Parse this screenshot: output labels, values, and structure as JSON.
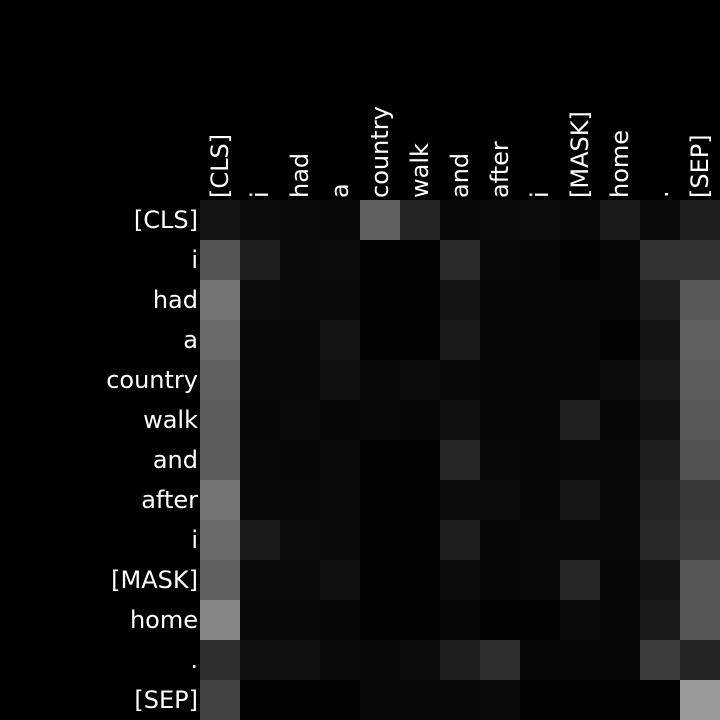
{
  "chart_data": {
    "type": "heatmap",
    "title": "",
    "xlabel": "",
    "ylabel": "",
    "grid": false,
    "colormap": "greys (black = 0, white = 1)",
    "value_range": [
      0,
      1
    ],
    "x_tokens": [
      "[CLS]",
      "i",
      "had",
      "a",
      "country",
      "walk",
      "and",
      "after",
      "i",
      "[MASK]",
      "home",
      ".",
      "[SEP]"
    ],
    "y_tokens": [
      "[CLS]",
      "i",
      "had",
      "a",
      "country",
      "walk",
      "and",
      "after",
      "i",
      "[MASK]",
      "home",
      ".",
      "[SEP]"
    ],
    "values": [
      [
        0.08,
        0.05,
        0.04,
        0.03,
        0.38,
        0.14,
        0.03,
        0.04,
        0.05,
        0.03,
        0.1,
        0.04,
        0.12
      ],
      [
        0.33,
        0.12,
        0.04,
        0.05,
        0.01,
        0.01,
        0.17,
        0.03,
        0.02,
        0.01,
        0.02,
        0.2,
        0.2
      ],
      [
        0.46,
        0.05,
        0.04,
        0.04,
        0.01,
        0.01,
        0.08,
        0.02,
        0.02,
        0.02,
        0.02,
        0.12,
        0.35
      ],
      [
        0.42,
        0.03,
        0.03,
        0.08,
        0.01,
        0.01,
        0.1,
        0.02,
        0.02,
        0.02,
        0.01,
        0.08,
        0.38
      ],
      [
        0.38,
        0.03,
        0.03,
        0.06,
        0.03,
        0.05,
        0.03,
        0.02,
        0.02,
        0.02,
        0.05,
        0.1,
        0.36
      ],
      [
        0.36,
        0.02,
        0.04,
        0.02,
        0.03,
        0.02,
        0.06,
        0.02,
        0.02,
        0.13,
        0.02,
        0.07,
        0.35
      ],
      [
        0.36,
        0.03,
        0.02,
        0.04,
        0.01,
        0.01,
        0.15,
        0.03,
        0.02,
        0.03,
        0.03,
        0.12,
        0.32
      ],
      [
        0.46,
        0.03,
        0.03,
        0.04,
        0.01,
        0.01,
        0.05,
        0.05,
        0.02,
        0.09,
        0.03,
        0.14,
        0.22
      ],
      [
        0.42,
        0.1,
        0.05,
        0.04,
        0.01,
        0.01,
        0.12,
        0.02,
        0.03,
        0.03,
        0.03,
        0.16,
        0.24
      ],
      [
        0.38,
        0.04,
        0.04,
        0.06,
        0.01,
        0.01,
        0.05,
        0.02,
        0.03,
        0.15,
        0.02,
        0.08,
        0.34
      ],
      [
        0.52,
        0.03,
        0.03,
        0.02,
        0.01,
        0.01,
        0.02,
        0.01,
        0.01,
        0.04,
        0.02,
        0.1,
        0.34
      ],
      [
        0.18,
        0.06,
        0.06,
        0.04,
        0.03,
        0.05,
        0.12,
        0.18,
        0.02,
        0.02,
        0.02,
        0.24,
        0.14
      ],
      [
        0.26,
        0.01,
        0.01,
        0.01,
        0.03,
        0.03,
        0.03,
        0.04,
        0.01,
        0.01,
        0.01,
        0.01,
        0.6
      ]
    ]
  }
}
